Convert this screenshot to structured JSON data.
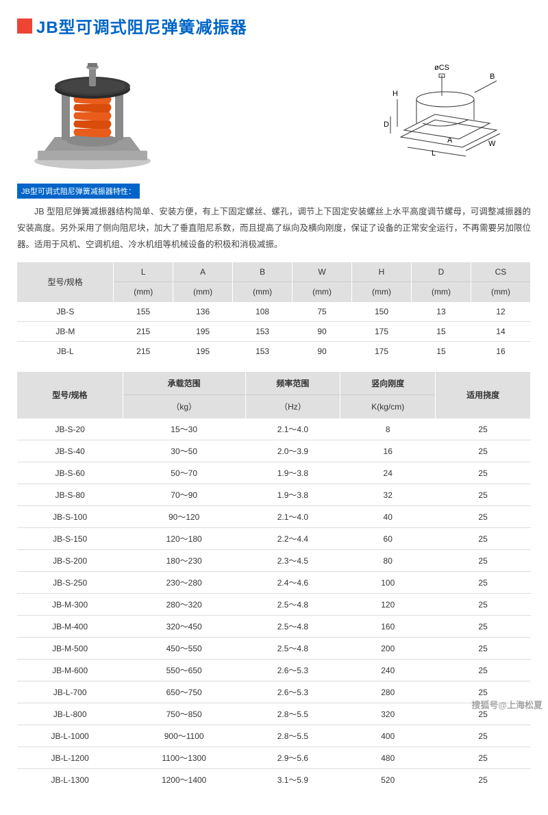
{
  "title": "JB型可调式阻尼弹簧减振器",
  "feature_label": "JB型可调式阻尼弹簧减振器特性：",
  "description": "JB 型阻尼弹簧减振器结构简单、安装方便，有上下固定螺丝、螺孔，调节上下固定安装螺丝上水平高度调节螺母，可调整减振器的安装高度。另外采用了侧向阻尼块，加大了垂直阻尼系数，而且提高了纵向及横向刚度，保证了设备的正常安全运行，不再需要另加限位器。适用于风机、空调机组、冷水机组等机械设备的积极和消极减振。",
  "diagram_labels": {
    "cs": "øCS",
    "b": "B",
    "h": "H",
    "d": "D",
    "a": "A",
    "l": "L",
    "w": "W"
  },
  "table1": {
    "header_model": "型号/规格",
    "columns": [
      "L",
      "A",
      "B",
      "W",
      "H",
      "D",
      "CS"
    ],
    "unit": "(mm)",
    "rows": [
      {
        "model": "JB-S",
        "vals": [
          "155",
          "136",
          "108",
          "75",
          "150",
          "13",
          "12"
        ]
      },
      {
        "model": "JB-M",
        "vals": [
          "215",
          "195",
          "153",
          "90",
          "175",
          "15",
          "14"
        ]
      },
      {
        "model": "JB-L",
        "vals": [
          "215",
          "195",
          "153",
          "90",
          "175",
          "15",
          "16"
        ]
      }
    ]
  },
  "table2": {
    "header_model": "型号/规格",
    "cols": [
      {
        "top": "承载范围",
        "sub": "（kg）"
      },
      {
        "top": "频率范围",
        "sub": "（Hz）"
      },
      {
        "top": "竖向刚度",
        "sub": "K(kg/cm)"
      },
      {
        "top": "适用挠度",
        "sub": ""
      }
    ],
    "rows": [
      {
        "m": "JB-S-20",
        "v": [
          "15～30",
          "2.1～4.0",
          "8",
          "25"
        ]
      },
      {
        "m": "JB-S-40",
        "v": [
          "30～50",
          "2.0～3.9",
          "16",
          "25"
        ]
      },
      {
        "m": "JB-S-60",
        "v": [
          "50～70",
          "1.9～3.8",
          "24",
          "25"
        ]
      },
      {
        "m": "JB-S-80",
        "v": [
          "70～90",
          "1.9～3.8",
          "32",
          "25"
        ]
      },
      {
        "m": "JB-S-100",
        "v": [
          "90～120",
          "2.1～4.0",
          "40",
          "25"
        ]
      },
      {
        "m": "JB-S-150",
        "v": [
          "120～180",
          "2.2～4.4",
          "60",
          "25"
        ]
      },
      {
        "m": "JB-S-200",
        "v": [
          "180～230",
          "2.3～4.5",
          "80",
          "25"
        ]
      },
      {
        "m": "JB-S-250",
        "v": [
          "230～280",
          "2.4～4.6",
          "100",
          "25"
        ]
      },
      {
        "m": "JB-M-300",
        "v": [
          "280～320",
          "2.5～4.8",
          "120",
          "25"
        ]
      },
      {
        "m": "JB-M-400",
        "v": [
          "320～450",
          "2.5～4.8",
          "160",
          "25"
        ]
      },
      {
        "m": "JB-M-500",
        "v": [
          "450～550",
          "2.5～4.8",
          "200",
          "25"
        ]
      },
      {
        "m": "JB-M-600",
        "v": [
          "550～650",
          "2.6～5.3",
          "240",
          "25"
        ]
      },
      {
        "m": "JB-L-700",
        "v": [
          "650～750",
          "2.6～5.3",
          "280",
          "25"
        ]
      },
      {
        "m": "JB-L-800",
        "v": [
          "750～850",
          "2.8～5.5",
          "320",
          "25"
        ]
      },
      {
        "m": "JB-L-1000",
        "v": [
          "900～1100",
          "2.8～5.5",
          "400",
          "25"
        ]
      },
      {
        "m": "JB-L-1200",
        "v": [
          "1100～1300",
          "2.9～5.6",
          "480",
          "25"
        ]
      },
      {
        "m": "JB-L-1300",
        "v": [
          "1200～1400",
          "3.1～5.9",
          "520",
          "25"
        ]
      }
    ]
  },
  "watermark": "搜狐号@上海松夏",
  "colors": {
    "title": "#0064c8",
    "red_square": "#e43",
    "table_header_bg": "#e0e0e0",
    "border": "#ddd",
    "spring_orange": "#e85d1c",
    "metal_gray": "#b8b8b8",
    "top_plate": "#3a3a3a"
  }
}
